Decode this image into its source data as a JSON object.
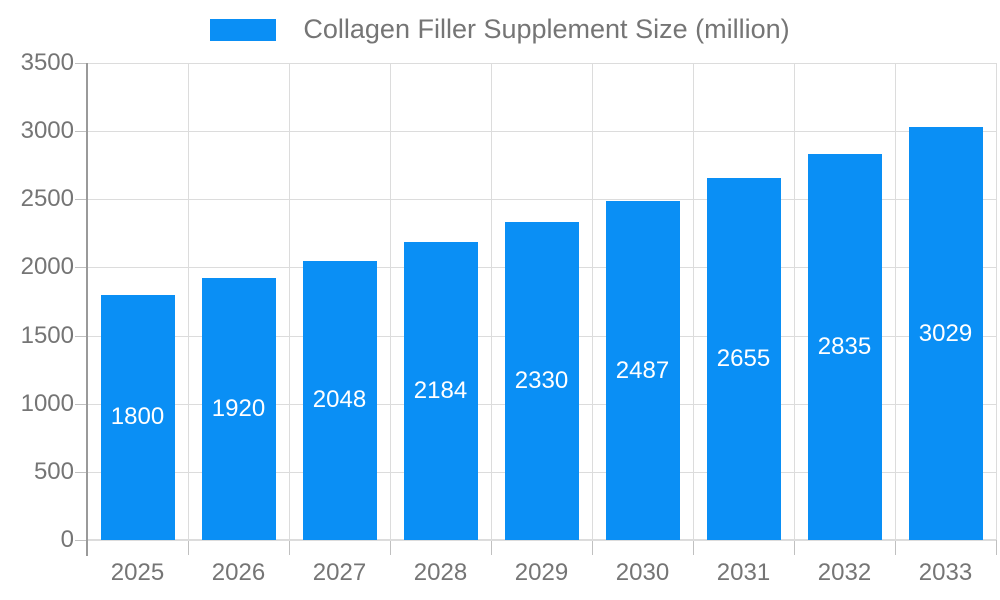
{
  "chart_data": {
    "type": "bar",
    "title": "Collagen Filler Supplement Size (million)",
    "legend": [
      "Collagen Filler Supplement Size (million)"
    ],
    "legend_position": "top",
    "categories": [
      "2025",
      "2026",
      "2027",
      "2028",
      "2029",
      "2030",
      "2031",
      "2032",
      "2033"
    ],
    "values": [
      1800,
      1920,
      2048,
      2184,
      2330,
      2487,
      2655,
      2835,
      3029
    ],
    "value_labels_inside_bars": true,
    "xlabel": "",
    "ylabel": "",
    "ylim": [
      0,
      3500
    ],
    "yticks": [
      0,
      500,
      1000,
      1500,
      2000,
      2500,
      3000,
      3500
    ],
    "grid": true,
    "colors": {
      "bar": "#0a8ff5",
      "value_label": "#ffffff",
      "axis_text": "#757575",
      "grid_line": "#dcdcdc",
      "axis_line": "#9a9a9a",
      "tick": "#c0c0c0",
      "background": "#ffffff"
    }
  }
}
